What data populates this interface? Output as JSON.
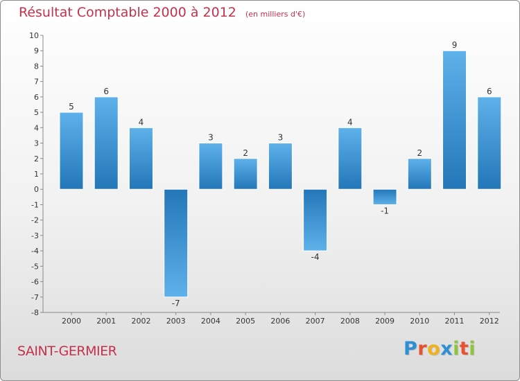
{
  "title": "Résultat Comptable 2000 à 2012",
  "subtitle": "(en milliers d'€)",
  "commune": "SAINT-GERMIER",
  "logo": {
    "letters": [
      "P",
      "r",
      "o",
      "x",
      "i",
      "t",
      "i"
    ],
    "colors": [
      "#2f8fd4",
      "#e8512f",
      "#f0b21c",
      "#2f8fd4",
      "#8fc43f",
      "#e8512f",
      "#8fc43f"
    ]
  },
  "colors": {
    "bar_light": "#5eb1ea",
    "bar_dark": "#2377b8",
    "text": "#333333",
    "title": "#c4314b"
  },
  "chart_data": {
    "type": "bar",
    "title": "Résultat Comptable 2000 à 2012",
    "subtitle": "(en milliers d'€)",
    "categories": [
      "2000",
      "2001",
      "2002",
      "2003",
      "2004",
      "2005",
      "2006",
      "2007",
      "2008",
      "2009",
      "2010",
      "2011",
      "2012"
    ],
    "values": [
      5,
      6,
      4,
      -7,
      3,
      2,
      3,
      -4,
      4,
      -1,
      2,
      9,
      6
    ],
    "value_labels": [
      "5",
      "6",
      "4",
      "-7",
      "3",
      "2",
      "3",
      "-4",
      "4",
      "-1",
      "2",
      "9",
      "6"
    ],
    "yticks": [
      "10",
      "9",
      "8",
      "7",
      "6",
      "5",
      "4",
      "3",
      "2",
      "1",
      "0",
      "-1",
      "-2",
      "-3",
      "-4",
      "-5",
      "-6",
      "-7",
      "-8"
    ],
    "ylim": [
      -8,
      10
    ],
    "xlabel": "",
    "ylabel": "",
    "grid": false
  }
}
